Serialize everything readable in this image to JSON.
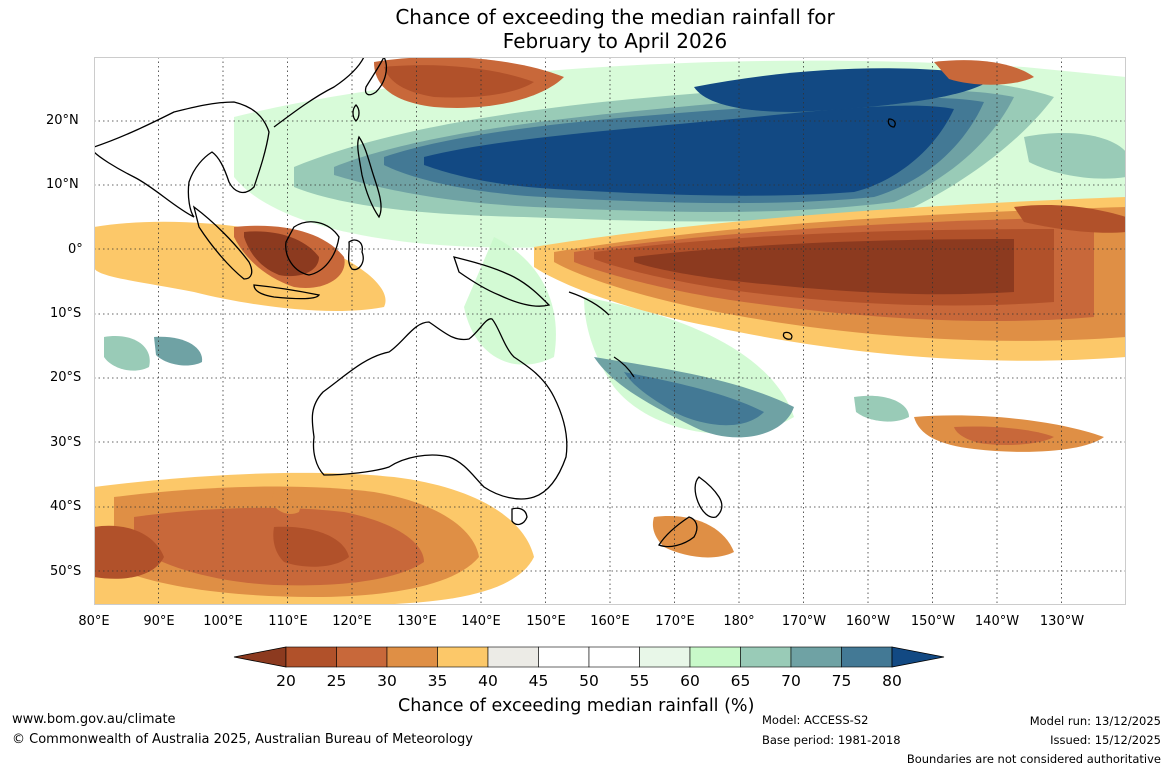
{
  "title": {
    "line1": "Chance of exceeding the median rainfall for",
    "line2": "February to April 2026"
  },
  "latitude_labels": [
    "20°N",
    "10°N",
    "0°",
    "10°S",
    "20°S",
    "30°S",
    "40°S",
    "50°S"
  ],
  "longitude_labels": [
    "80°E",
    "90°E",
    "100°E",
    "110°E",
    "120°E",
    "130°E",
    "140°E",
    "150°E",
    "160°E",
    "170°E",
    "180°",
    "170°W",
    "160°W",
    "150°W",
    "140°W",
    "130°W"
  ],
  "colorbar": {
    "title": "Chance of exceeding median rainfall (%)",
    "ticks": [
      "20",
      "25",
      "30",
      "35",
      "40",
      "45",
      "50",
      "55",
      "60",
      "65",
      "70",
      "75",
      "80"
    ],
    "colors": [
      "#8c3a1f",
      "#b1512a",
      "#c8683a",
      "#df8f45",
      "#fcc869",
      "#ecebe6",
      "#ffffff",
      "#ffffff",
      "#e8f7e8",
      "#c8f9c9",
      "#99cbb7",
      "#6fa2a4",
      "#437995",
      "#124983"
    ]
  },
  "footer": {
    "website": "www.bom.gov.au/climate",
    "copyright": "© Commonwealth of Australia 2025, Australian Bureau of Meteorology",
    "model": "Model: ACCESS-S2",
    "base_period": "Base period: 1981-2018",
    "model_run": "Model run: 13/12/2025",
    "issued": "Issued: 15/12/2025",
    "boundaries": "Boundaries are not considered authoritative"
  }
}
